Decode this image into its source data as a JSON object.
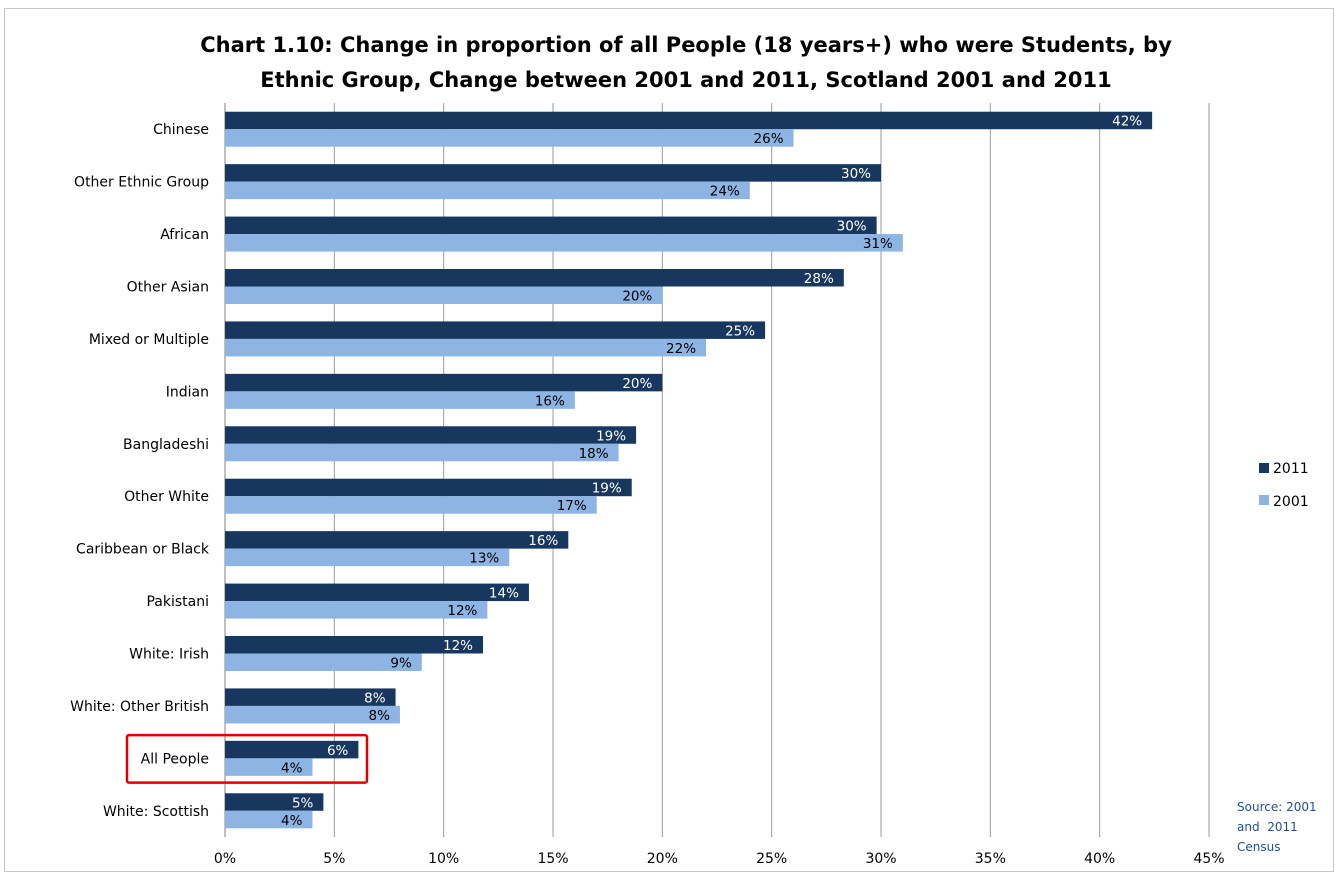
{
  "chart_data": {
    "type": "bar",
    "orientation": "horizontal",
    "title": "Chart 1.10: Change in proportion of all People (18 years+) who were Students, by Ethnic Group, Change between 2001 and 2011, Scotland 2001 and 2011",
    "title_lines": [
      "Chart 1.10: Change in proportion of all People (18 years+) who were Students, by",
      "Ethnic Group, Change between 2001 and 2011, Scotland 2001 and 2011"
    ],
    "categories": [
      "Chinese",
      "Other Ethnic Group",
      "African",
      "Other Asian",
      "Mixed or Multiple",
      "Indian",
      "Bangladeshi",
      "Other White",
      "Caribbean or Black",
      "Pakistani",
      "White: Irish",
      "White: Other British",
      "All People",
      "White: Scottish"
    ],
    "series": [
      {
        "name": "2011",
        "color": "#17375e",
        "values": [
          42.4,
          30.0,
          29.8,
          28.3,
          24.7,
          20.0,
          18.8,
          18.6,
          15.7,
          13.9,
          11.8,
          7.8,
          6.1,
          4.5
        ],
        "labels": [
          "42%",
          "30%",
          "30%",
          "28%",
          "25%",
          "20%",
          "19%",
          "19%",
          "16%",
          "14%",
          "12%",
          "8%",
          "6%",
          "5%"
        ]
      },
      {
        "name": "2001",
        "color": "#8db4e2",
        "values": [
          26.0,
          24.0,
          31.0,
          20.0,
          22.0,
          16.0,
          18.0,
          17.0,
          13.0,
          12.0,
          9.0,
          8.0,
          4.0,
          4.0
        ],
        "labels": [
          "26%",
          "24%",
          "31%",
          "20%",
          "22%",
          "16%",
          "18%",
          "17%",
          "13%",
          "12%",
          "9%",
          "8%",
          "4%",
          "4%"
        ]
      }
    ],
    "xlim": [
      0,
      45
    ],
    "xticks": [
      0,
      5,
      10,
      15,
      20,
      25,
      30,
      35,
      40,
      45
    ],
    "xtick_labels": [
      "0%",
      "5%",
      "10%",
      "15%",
      "20%",
      "25%",
      "30%",
      "35%",
      "40%",
      "45%"
    ],
    "grid": "vertical",
    "legend": {
      "position": "right",
      "entries": [
        "2011",
        "2001"
      ]
    },
    "highlight": {
      "category": "All People",
      "color": "#e00000"
    },
    "source_lines": [
      "Source: 2001",
      "and  2011",
      "Census"
    ]
  }
}
